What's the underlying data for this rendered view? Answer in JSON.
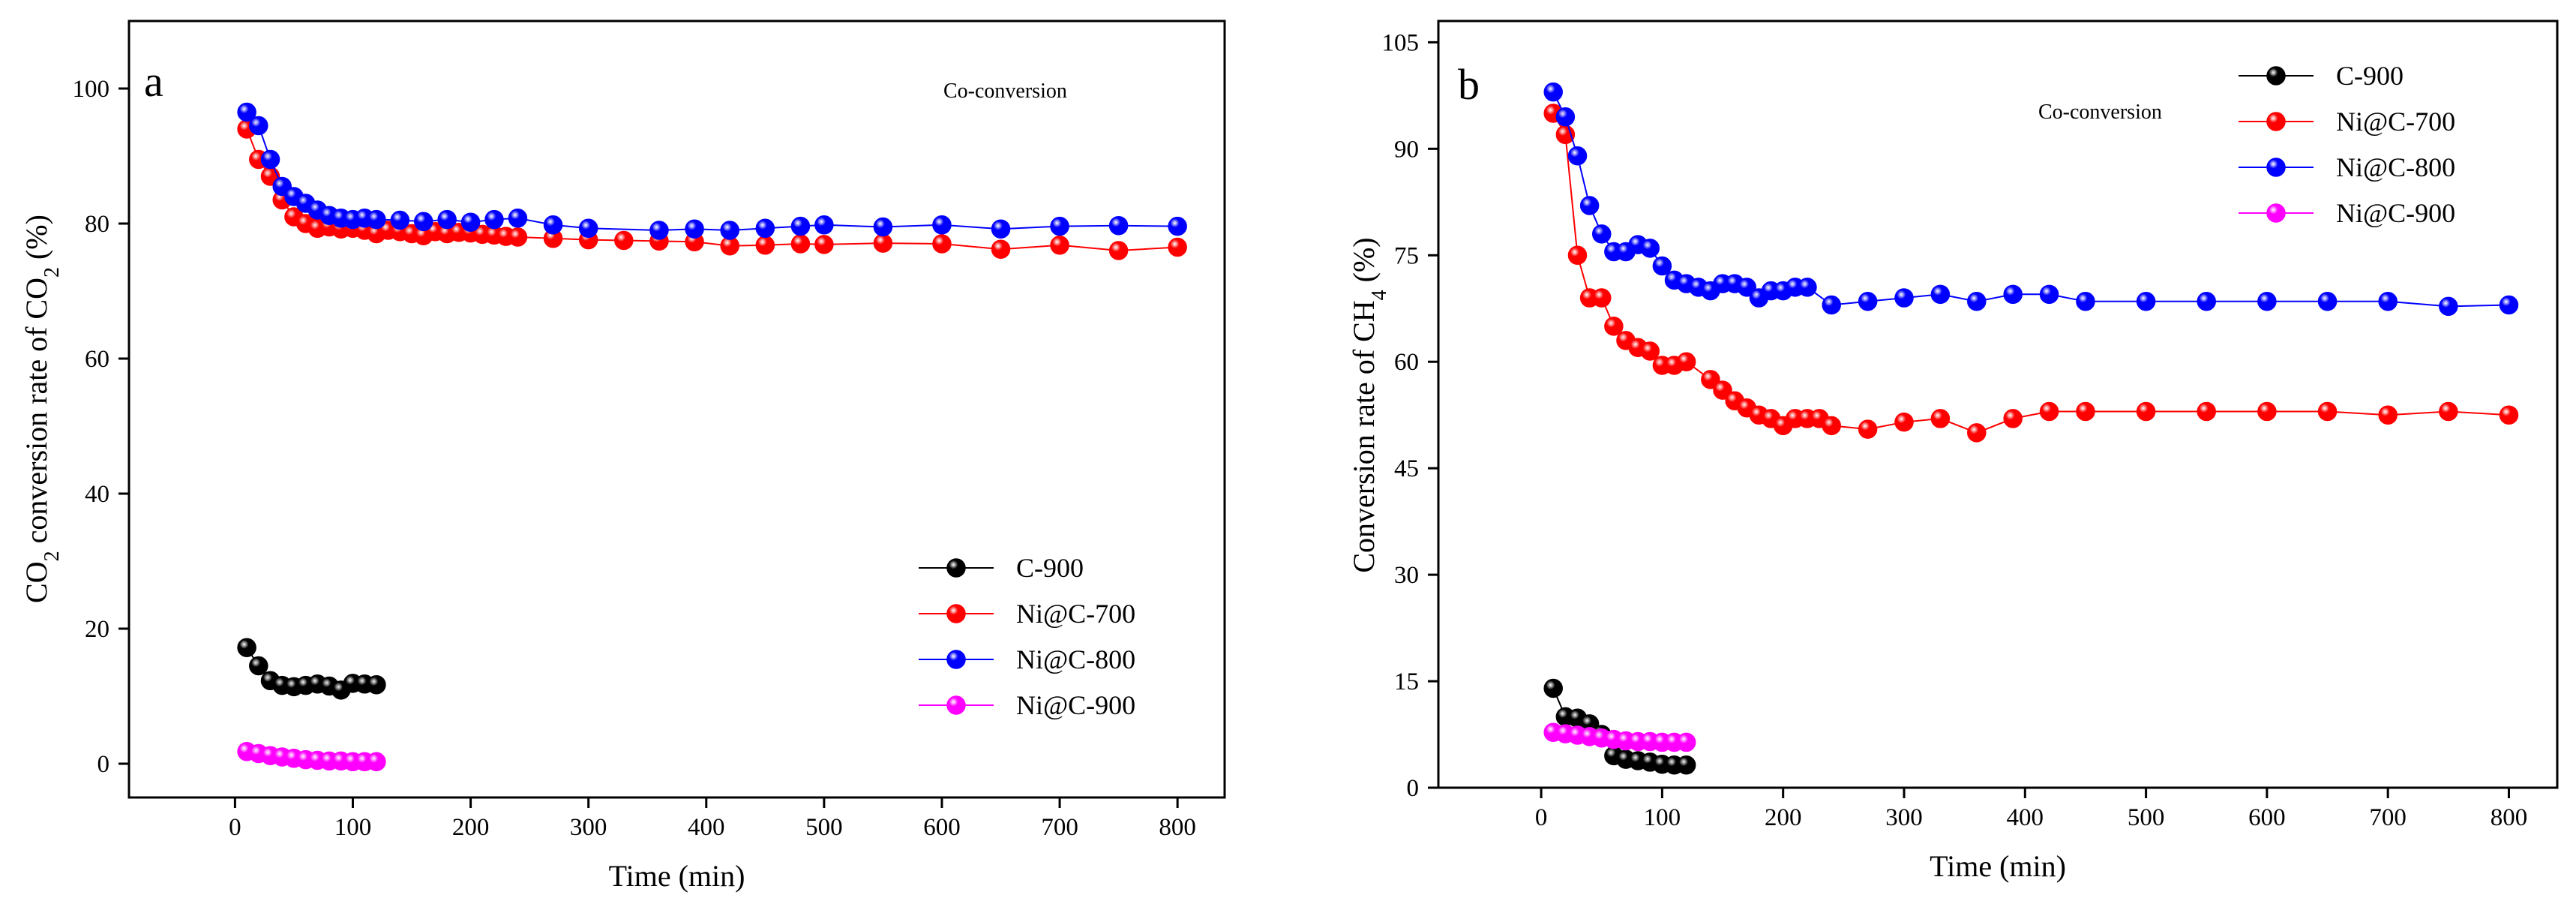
{
  "chart_data": [
    {
      "type": "line",
      "panel_label": "a",
      "annotation": "Co-conversion",
      "xlabel": "Time (min)",
      "ylabel_main": "CO",
      "ylabel_sub": "2",
      "ylabel_prefix": "",
      "ylabel_prefix_note": "",
      "ylabel_pre": "",
      "ylabel_full": "CO2 conversion rate of CO2 (%)",
      "ylabel_parts": [
        "CO",
        "2",
        " conversion rate of CO",
        "2",
        " (%)"
      ],
      "xlim": [
        -90,
        840
      ],
      "ylim": [
        -5,
        110
      ],
      "xticks": [
        0,
        100,
        200,
        300,
        400,
        500,
        600,
        700,
        800
      ],
      "yticks": [
        0,
        20,
        40,
        60,
        80,
        100
      ],
      "legend_position": "bottom-right",
      "legend_order": [
        "C-900",
        "Ni@C-700",
        "Ni@C-800",
        "Ni@C-900"
      ],
      "series": [
        {
          "name": "C-900",
          "color": "#000000",
          "x": [
            10,
            20,
            30,
            40,
            50,
            60,
            70,
            80,
            90,
            100,
            110,
            120
          ],
          "y": [
            17.2,
            14.5,
            12.3,
            11.6,
            11.4,
            11.6,
            11.8,
            11.5,
            10.9,
            11.9,
            11.8,
            11.7
          ]
        },
        {
          "name": "Ni@C-700",
          "color": "#ff0000",
          "x": [
            10,
            20,
            30,
            40,
            50,
            60,
            70,
            80,
            90,
            100,
            110,
            120,
            130,
            140,
            150,
            160,
            170,
            180,
            190,
            200,
            210,
            220,
            230,
            240,
            270,
            300,
            330,
            360,
            390,
            420,
            450,
            480,
            500,
            550,
            600,
            650,
            700,
            750,
            800
          ],
          "y": [
            94,
            89.5,
            87,
            83.5,
            81,
            80,
            79.3,
            79.5,
            79.2,
            79.3,
            79,
            78.5,
            79,
            78.8,
            78.5,
            78.2,
            78.8,
            78.5,
            78.7,
            78.6,
            78.4,
            78.3,
            78.1,
            78,
            77.8,
            77.6,
            77.5,
            77.4,
            77.3,
            76.7,
            76.8,
            77,
            76.9,
            77.1,
            77,
            76.2,
            76.8,
            76,
            76.5
          ]
        },
        {
          "name": "Ni@C-800",
          "color": "#0000ff",
          "x": [
            10,
            20,
            30,
            40,
            50,
            60,
            70,
            80,
            90,
            100,
            110,
            120,
            140,
            160,
            180,
            200,
            220,
            240,
            270,
            300,
            360,
            390,
            420,
            450,
            480,
            500,
            550,
            600,
            650,
            700,
            750,
            800
          ],
          "y": [
            96.5,
            94.5,
            89.5,
            85.5,
            84,
            83,
            82,
            81.2,
            80.8,
            80.6,
            80.8,
            80.6,
            80.5,
            80.3,
            80.6,
            80.2,
            80.6,
            80.8,
            79.8,
            79.3,
            79,
            79.2,
            79,
            79.3,
            79.6,
            79.8,
            79.5,
            79.8,
            79.2,
            79.6,
            79.7,
            79.6
          ]
        },
        {
          "name": "Ni@C-900",
          "color": "#ff00ff",
          "x": [
            10,
            20,
            30,
            40,
            50,
            60,
            70,
            80,
            90,
            100,
            110,
            120
          ],
          "y": [
            1.8,
            1.5,
            1.2,
            1.0,
            0.8,
            0.6,
            0.5,
            0.4,
            0.4,
            0.3,
            0.3,
            0.3
          ]
        }
      ]
    },
    {
      "type": "line",
      "panel_label": "b",
      "annotation": "Co-conversion",
      "xlabel": "Time (min)",
      "ylabel_full": "Conversion rate of CH4 (%)",
      "ylabel_parts": [
        "Conversion rate of CH",
        "4",
        " (%)"
      ],
      "xlim": [
        -85,
        840
      ],
      "ylim": [
        0,
        108
      ],
      "xticks": [
        0,
        100,
        200,
        300,
        400,
        500,
        600,
        700,
        800
      ],
      "yticks": [
        0,
        15,
        30,
        45,
        60,
        75,
        90,
        105
      ],
      "legend_position": "top-right",
      "legend_order": [
        "C-900",
        "Ni@C-700",
        "Ni@C-800",
        "Ni@C-900"
      ],
      "series": [
        {
          "name": "C-900",
          "color": "#000000",
          "x": [
            10,
            20,
            30,
            40,
            50,
            60,
            70,
            80,
            90,
            100,
            110,
            120
          ],
          "y": [
            14,
            10,
            9.8,
            9,
            7.5,
            4.5,
            4,
            3.8,
            3.6,
            3.3,
            3.2,
            3.2
          ]
        },
        {
          "name": "Ni@C-700",
          "color": "#ff0000",
          "x": [
            10,
            20,
            30,
            40,
            50,
            60,
            70,
            80,
            90,
            100,
            110,
            120,
            140,
            150,
            160,
            170,
            180,
            190,
            200,
            210,
            220,
            230,
            240,
            270,
            300,
            330,
            360,
            390,
            420,
            450,
            500,
            550,
            600,
            650,
            700,
            750,
            800
          ],
          "y": [
            95,
            92,
            75,
            69,
            69,
            65,
            63,
            62,
            61.5,
            59.5,
            59.5,
            60,
            57.5,
            56,
            54.5,
            53.5,
            52.5,
            52,
            51,
            52,
            52,
            52,
            51,
            50.5,
            51.5,
            52,
            50,
            52,
            53,
            53,
            53,
            53,
            53,
            53,
            52.5,
            53,
            52.5
          ]
        },
        {
          "name": "Ni@C-800",
          "color": "#0000ff",
          "x": [
            10,
            20,
            30,
            40,
            50,
            60,
            70,
            80,
            90,
            100,
            110,
            120,
            130,
            140,
            150,
            160,
            170,
            180,
            190,
            200,
            210,
            220,
            240,
            270,
            300,
            330,
            360,
            390,
            420,
            450,
            500,
            550,
            600,
            650,
            700,
            750,
            800
          ],
          "y": [
            98,
            94.5,
            89,
            82,
            78,
            75.5,
            75.5,
            76.5,
            76,
            73.5,
            71.5,
            71,
            70.5,
            70,
            71,
            71,
            70.5,
            69,
            70,
            70,
            70.5,
            70.5,
            68,
            68.5,
            69,
            69.5,
            68.5,
            69.5,
            69.5,
            68.5,
            68.5,
            68.5,
            68.5,
            68.5,
            68.5,
            67.8,
            68
          ]
        },
        {
          "name": "Ni@C-900",
          "color": "#ff00ff",
          "x": [
            10,
            20,
            30,
            40,
            50,
            60,
            70,
            80,
            90,
            100,
            110,
            120
          ],
          "y": [
            7.8,
            7.6,
            7.4,
            7.2,
            7.0,
            6.8,
            6.6,
            6.5,
            6.5,
            6.4,
            6.4,
            6.4
          ]
        }
      ]
    }
  ]
}
